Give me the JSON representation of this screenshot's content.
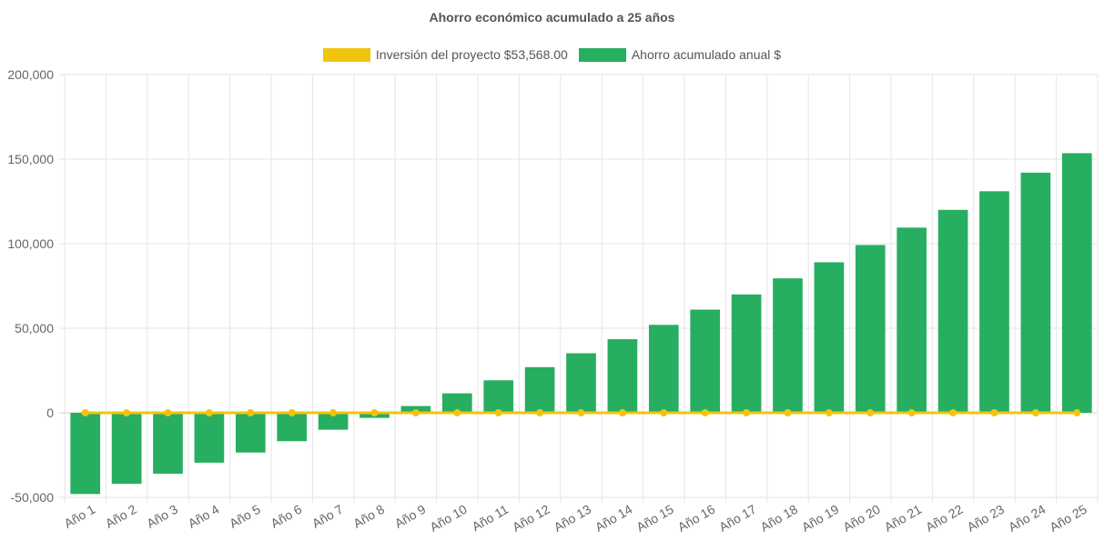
{
  "chart_data": {
    "type": "bar",
    "title": "Ahorro económico acumulado a 25 años",
    "xlabel": "",
    "ylabel": "",
    "ylim": [
      -50000,
      200000
    ],
    "yticks": [
      "200,000",
      "150,000",
      "100,000",
      "50,000",
      "0",
      "-50,000"
    ],
    "ytick_values": [
      200000,
      150000,
      100000,
      50000,
      0,
      -50000
    ],
    "grid": true,
    "legend_position": "top-center",
    "categories": [
      "Año 1",
      "Año 2",
      "Año 3",
      "Año 4",
      "Año 5",
      "Año 6",
      "Año 7",
      "Año 8",
      "Año 9",
      "Año 10",
      "Año 11",
      "Año 12",
      "Año 13",
      "Año 14",
      "Año 15",
      "Año 16",
      "Año 17",
      "Año 18",
      "Año 19",
      "Año 20",
      "Año 21",
      "Año 22",
      "Año 23",
      "Año 24",
      "Año 25"
    ],
    "series": [
      {
        "name": "Inversión del proyecto $53,568.00",
        "type": "line",
        "color": "#f1c40f",
        "values": [
          0,
          0,
          0,
          0,
          0,
          0,
          0,
          0,
          0,
          0,
          0,
          0,
          0,
          0,
          0,
          0,
          0,
          0,
          0,
          0,
          0,
          0,
          0,
          0,
          0
        ]
      },
      {
        "name": "Ahorro acumulado anual $",
        "type": "bar",
        "color": "#27ae60",
        "values": [
          -48000,
          -42000,
          -36000,
          -29500,
          -23500,
          -16800,
          -10000,
          -3000,
          4000,
          11500,
          19200,
          27000,
          35200,
          43500,
          52000,
          61000,
          70000,
          79500,
          89000,
          99200,
          109500,
          120000,
          131000,
          142000,
          153500
        ]
      }
    ]
  }
}
